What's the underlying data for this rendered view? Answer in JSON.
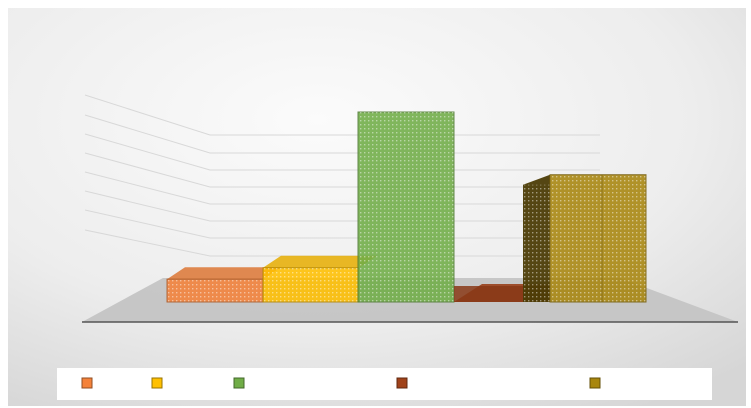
{
  "chart_data": {
    "type": "bar",
    "subtype": "3d-column",
    "title": "",
    "xlabel": "",
    "ylabel": "",
    "series": [
      {
        "name": "",
        "value": 0.12,
        "color": "#F4823A"
      },
      {
        "name": "",
        "value": 0.18,
        "color": "#FFC000"
      },
      {
        "name": "",
        "value": 1.0,
        "color": "#70AD47"
      },
      {
        "name": "",
        "value": 0.0,
        "color": "#A0421A"
      },
      {
        "name": "",
        "value": 0.67,
        "color": "#A8860E"
      }
    ],
    "ylim": [
      0,
      1
    ],
    "grid": true,
    "legend_position": "bottom"
  },
  "colors": {
    "background_light": "#F8F8F8",
    "background_dark": "#DCDCDC",
    "floor": "#C4C4C4",
    "gridline": "#D8D8D8",
    "legend_bg": "#FFFFFF"
  }
}
